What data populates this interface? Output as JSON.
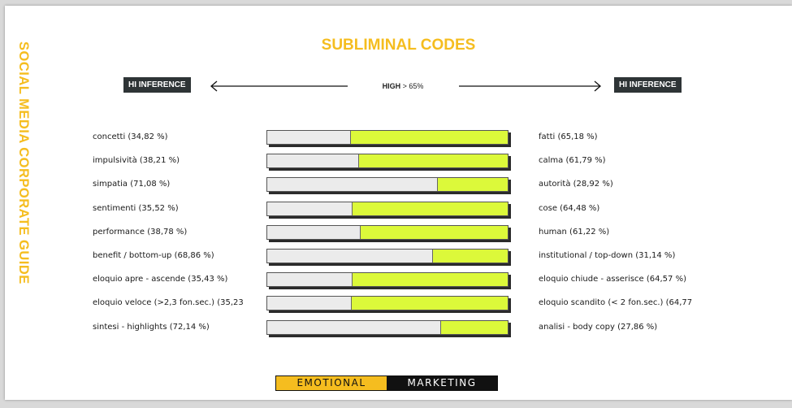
{
  "side_title": "SOCIAL MEDIA CORPORATE GUIDE",
  "title": "SUBLIMINAL CODES",
  "left_tag": "HI INFERENCE",
  "right_tag": "HI INFERENCE",
  "high_label": "HIGH",
  "high_value": "> 65%",
  "logo": {
    "part1": "EMOTIONAL",
    "part2": "MARKETING"
  },
  "colors": {
    "accent": "#f5bd1f",
    "fill": "#dcf93a",
    "tag_bg": "#2e3436"
  },
  "chart_data": {
    "type": "bar",
    "orientation": "horizontal-stacked-100",
    "rows": [
      {
        "left_label": "concetti (34,82 %)",
        "left": 34.82,
        "right_label": "fatti (65,18 %)",
        "right": 65.18
      },
      {
        "left_label": "impulsività (38,21 %)",
        "left": 38.21,
        "right_label": "calma (61,79 %)",
        "right": 61.79
      },
      {
        "left_label": "simpatia (71,08 %)",
        "left": 71.08,
        "right_label": "autorità (28,92 %)",
        "right": 28.92
      },
      {
        "left_label": "sentimenti (35,52 %)",
        "left": 35.52,
        "right_label": "cose (64,48 %)",
        "right": 64.48
      },
      {
        "left_label": "performance (38,78 %)",
        "left": 38.78,
        "right_label": "human (61,22 %)",
        "right": 61.22
      },
      {
        "left_label": "benefit / bottom-up  (68,86 %)",
        "left": 68.86,
        "right_label": "institutional / top-down  (31,14 %)",
        "right": 31.14
      },
      {
        "left_label": "eloquio apre - ascende (35,43 %)",
        "left": 35.43,
        "right_label": "eloquio chiude - asserisce (64,57 %)",
        "right": 64.57
      },
      {
        "left_label": "eloquio veloce (>2,3 fon.sec.) (35,23",
        "left": 35.23,
        "right_label": "eloquio scandito (< 2 fon.sec.) (64,77",
        "right": 64.77
      },
      {
        "left_label": "sintesi - highlights (72,14 %)",
        "left": 72.14,
        "right_label": "analisi - body copy (27,86 %)",
        "right": 27.86
      }
    ]
  }
}
